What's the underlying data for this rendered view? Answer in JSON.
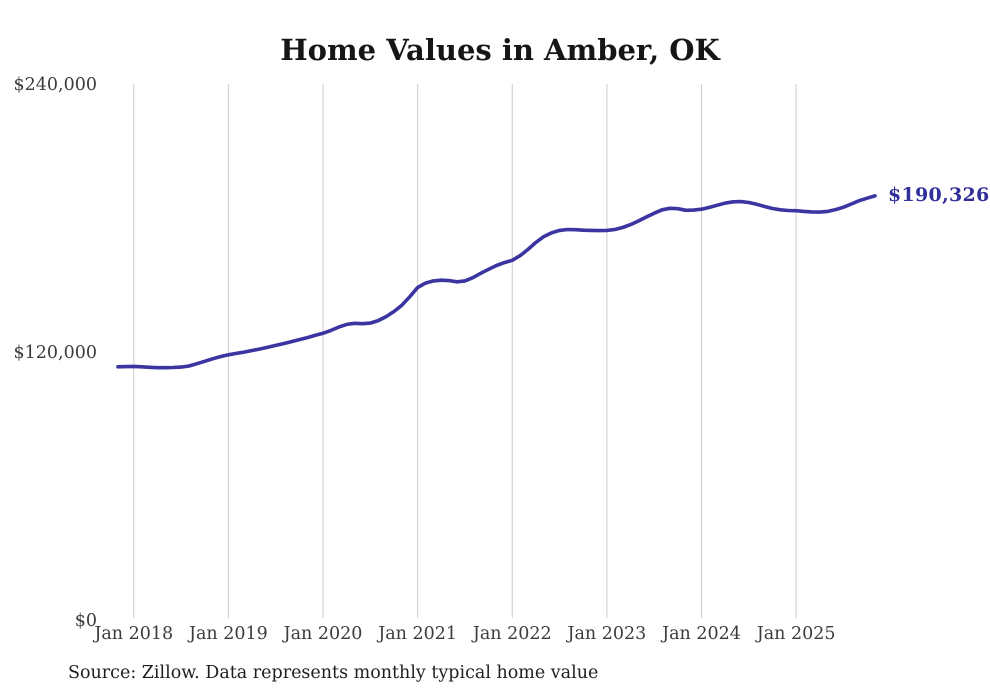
{
  "title": "Home Values in Amber, OK",
  "source_note": "Source: Zillow. Data represents monthly typical home value",
  "colors": {
    "line": "#3A35A0",
    "end_label": "#322E9B",
    "gridline": "#CCCCCC",
    "axis_text": "#3C3C3C",
    "title_text": "#161616",
    "background": "#FFFFFF"
  },
  "chart_data": {
    "type": "line",
    "title": "Home Values in Amber, OK",
    "series_name": "Monthly typical home value (USD)",
    "xlabel": "",
    "ylabel": "",
    "ylim": [
      0,
      240000
    ],
    "grid": "vertical-only",
    "legend": "none",
    "end_label": "$190,326",
    "end_value": 190326,
    "x_tick_labels": [
      "Jan 2018",
      "Jan 2019",
      "Jan 2020",
      "Jan 2021",
      "Jan 2022",
      "Jan 2023",
      "Jan 2024",
      "Jan 2025"
    ],
    "y_ticks": [
      {
        "label": "$240,000",
        "value": 240000
      },
      {
        "label": "$120,000",
        "value": 120000
      },
      {
        "label": "$0",
        "value": 0
      }
    ],
    "x": [
      "Nov 2017",
      "Dec 2017",
      "Jan 2018",
      "Feb 2018",
      "Mar 2018",
      "Apr 2018",
      "May 2018",
      "Jun 2018",
      "Jul 2018",
      "Aug 2018",
      "Sep 2018",
      "Oct 2018",
      "Nov 2018",
      "Dec 2018",
      "Jan 2019",
      "Feb 2019",
      "Mar 2019",
      "Apr 2019",
      "May 2019",
      "Jun 2019",
      "Jul 2019",
      "Aug 2019",
      "Sep 2019",
      "Oct 2019",
      "Nov 2019",
      "Dec 2019",
      "Jan 2020",
      "Feb 2020",
      "Mar 2020",
      "Apr 2020",
      "May 2020",
      "Jun 2020",
      "Jul 2020",
      "Aug 2020",
      "Sep 2020",
      "Oct 2020",
      "Nov 2020",
      "Dec 2020",
      "Jan 2021",
      "Feb 2021",
      "Mar 2021",
      "Apr 2021",
      "May 2021",
      "Jun 2021",
      "Jul 2021",
      "Aug 2021",
      "Sep 2021",
      "Oct 2021",
      "Nov 2021",
      "Dec 2021",
      "Jan 2022",
      "Feb 2022",
      "Mar 2022",
      "Apr 2022",
      "May 2022",
      "Jun 2022",
      "Jul 2022",
      "Aug 2022",
      "Sep 2022",
      "Oct 2022",
      "Nov 2022",
      "Dec 2022",
      "Jan 2023",
      "Feb 2023",
      "Mar 2023",
      "Apr 2023",
      "May 2023",
      "Jun 2023",
      "Jul 2023",
      "Aug 2023",
      "Sep 2023",
      "Oct 2023",
      "Nov 2023",
      "Dec 2023",
      "Jan 2024",
      "Feb 2024",
      "Mar 2024",
      "Apr 2024",
      "May 2024",
      "Jun 2024",
      "Jul 2024",
      "Aug 2024",
      "Sep 2024",
      "Oct 2024",
      "Nov 2024",
      "Dec 2024",
      "Jan 2025",
      "Feb 2025",
      "Mar 2025",
      "Apr 2025",
      "May 2025",
      "Jun 2025",
      "Jul 2025",
      "Aug 2025",
      "Sep 2025",
      "Oct 2025",
      "Nov 2025"
    ],
    "values": [
      113800,
      113900,
      114000,
      113800,
      113600,
      113400,
      113400,
      113500,
      113700,
      114200,
      115200,
      116300,
      117400,
      118400,
      119200,
      119800,
      120400,
      121100,
      121800,
      122600,
      123400,
      124200,
      125100,
      126000,
      126900,
      127900,
      128800,
      130100,
      131600,
      132800,
      133300,
      133100,
      133400,
      134500,
      136300,
      138600,
      141400,
      145200,
      149300,
      151300,
      152300,
      152600,
      152400,
      151900,
      152300,
      153700,
      155700,
      157500,
      159200,
      160500,
      161500,
      163600,
      166400,
      169500,
      172100,
      173800,
      174900,
      175300,
      175200,
      175000,
      174900,
      174800,
      174900,
      175300,
      176200,
      177500,
      179100,
      180900,
      182600,
      184100,
      184800,
      184600,
      183900,
      184000,
      184400,
      185200,
      186200,
      187100,
      187700,
      187800,
      187400,
      186600,
      185600,
      184700,
      184100,
      183800,
      183700,
      183400,
      183200,
      183100,
      183400,
      184200,
      185300,
      186700,
      188200,
      189300,
      190326
    ]
  }
}
